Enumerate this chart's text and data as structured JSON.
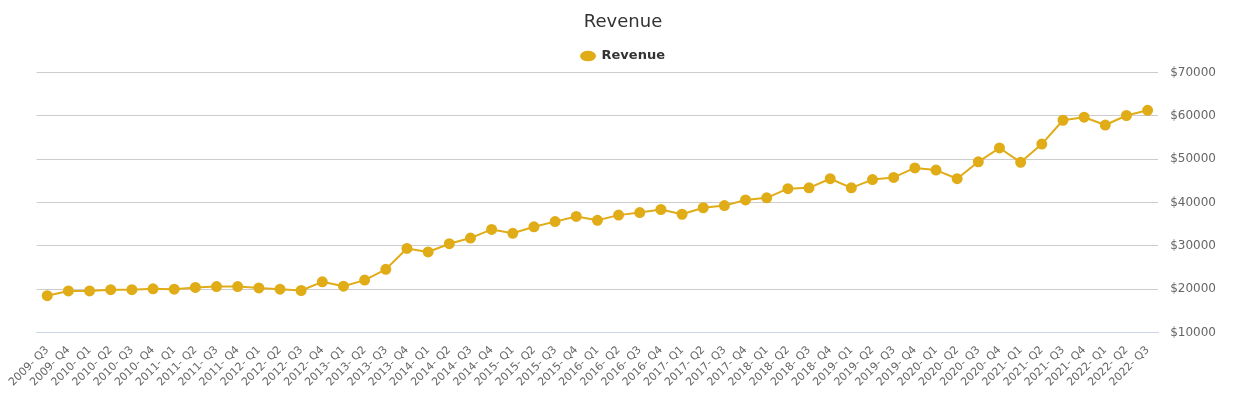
{
  "chart_data": {
    "type": "line",
    "title": "Revenue",
    "categories": [
      "2009- Q3",
      "2009- Q4",
      "2010- Q1",
      "2010- Q2",
      "2010- Q3",
      "2010- Q4",
      "2011- Q1",
      "2011- Q2",
      "2011- Q3",
      "2011- Q4",
      "2012- Q1",
      "2012- Q2",
      "2012- Q3",
      "2012- Q4",
      "2013- Q1",
      "2013- Q2",
      "2013- Q3",
      "2013- Q4",
      "2014- Q1",
      "2014- Q2",
      "2014- Q3",
      "2014- Q4",
      "2015- Q1",
      "2015- Q2",
      "2015- Q3",
      "2015- Q4",
      "2016- Q1",
      "2016- Q2",
      "2016- Q3",
      "2016- Q4",
      "2017- Q1",
      "2017- Q2",
      "2017- Q3",
      "2017- Q4",
      "2018- Q1",
      "2018- Q2",
      "2018- Q3",
      "2018- Q4",
      "2019- Q1",
      "2019- Q2",
      "2019- Q3",
      "2019- Q4",
      "2020- Q1",
      "2020- Q2",
      "2020- Q3",
      "2020- Q4",
      "2021- Q1",
      "2021- Q2",
      "2021- Q3",
      "2021- Q4",
      "2022- Q1",
      "2022- Q2",
      "2022- Q3"
    ],
    "series": [
      {
        "name": "Revenue",
        "color": "#e0ac17",
        "values": [
          18500,
          19600,
          19600,
          19900,
          19900,
          20100,
          20000,
          20400,
          20600,
          20600,
          20300,
          20000,
          19700,
          21700,
          20700,
          22100,
          24600,
          29400,
          28600,
          30500,
          31800,
          33800,
          32900,
          34400,
          35600,
          36800,
          35900,
          37100,
          37700,
          38400,
          37300,
          38800,
          39300,
          40600,
          41100,
          43200,
          43400,
          45500,
          43400,
          45300,
          45800,
          48000,
          47500,
          45500,
          49400,
          52600,
          49300,
          53500,
          59000,
          59700,
          57900,
          60100,
          61300
        ]
      }
    ],
    "ylim": [
      10000,
      70000
    ],
    "yticks": [
      {
        "value": 10000,
        "label": "$10000"
      },
      {
        "value": 20000,
        "label": "$20000"
      },
      {
        "value": 30000,
        "label": "$30000"
      },
      {
        "value": 40000,
        "label": "$40000"
      },
      {
        "value": 50000,
        "label": "$50000"
      },
      {
        "value": 60000,
        "label": "$60000"
      },
      {
        "value": 70000,
        "label": "$70000"
      }
    ],
    "grid": "y",
    "legend": "top",
    "marker": "circle",
    "line_style": "solid"
  }
}
